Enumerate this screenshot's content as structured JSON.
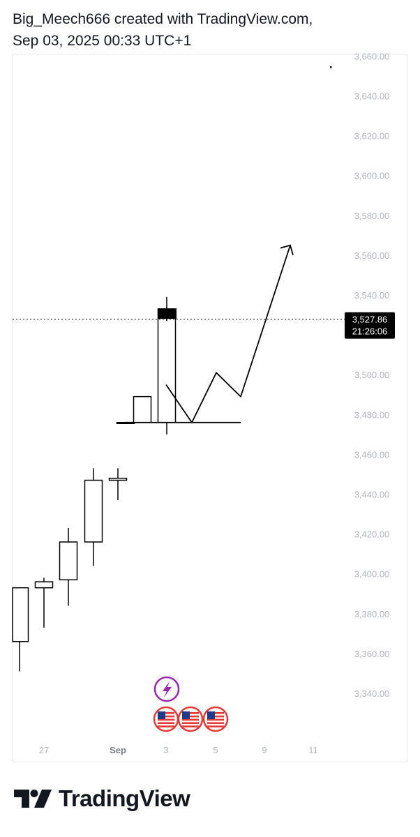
{
  "header": {
    "line1": "Big_Meech666 created with TradingView.com,",
    "line2": "Sep 03, 2025 00:33 UTC+1"
  },
  "brand": {
    "name": "TradingView"
  },
  "chart_data": {
    "type": "candlestick",
    "y_ticks": [
      "3,660.00",
      "3,640.00",
      "3,620.00",
      "3,600.00",
      "3,580.00",
      "3,560.00",
      "3,540.00",
      "3,500.00",
      "3,480.00",
      "3,460.00",
      "3,440.00",
      "3,420.00",
      "3,400.00",
      "3,380.00",
      "3,360.00",
      "3,340.00"
    ],
    "ylim": [
      3325,
      3662
    ],
    "x_ticks": [
      {
        "label": "27",
        "bold": false
      },
      {
        "label": "Sep",
        "bold": true
      },
      {
        "label": "3",
        "bold": false
      },
      {
        "label": "5",
        "bold": false
      },
      {
        "label": "9",
        "bold": false
      },
      {
        "label": "11",
        "bold": false
      }
    ],
    "candles": [
      {
        "open": 3393,
        "high": 3393,
        "low": 3351,
        "close": 3366,
        "partial": true
      },
      {
        "open": 3393,
        "high": 3398,
        "low": 3373,
        "close": 3396
      },
      {
        "open": 3397,
        "high": 3423,
        "low": 3384,
        "close": 3416
      },
      {
        "open": 3416,
        "high": 3453,
        "low": 3404,
        "close": 3447
      },
      {
        "open": 3448,
        "high": 3453,
        "low": 3437,
        "close": 3447
      },
      {
        "open": 3476,
        "high": 3476,
        "low": 3476,
        "close": 3476
      },
      {
        "open": 3476,
        "high": 3489,
        "low": 3476,
        "close": 3489
      },
      {
        "open": 3476,
        "high": 3539,
        "low": 3470,
        "close": 3533
      },
      {
        "open": 3532,
        "high": 3534,
        "low": 3527,
        "close": 3528
      }
    ],
    "last_price": {
      "value": "3,527.86",
      "countdown": "21:26:06",
      "price": 3527.86
    },
    "drawings": {
      "support_level": 3476,
      "projection_path": [
        3495,
        3476,
        3501,
        3489,
        3565
      ]
    },
    "events": {
      "lightning_icon": "lightning-icon",
      "flag_icons": [
        "us-flag-icon",
        "us-flag-icon",
        "us-flag-icon"
      ],
      "colors": {
        "event_purple": "#9c27b0",
        "flag_red": "#e53935",
        "flag_blue": "#1e3a8a"
      }
    },
    "colors": {
      "candle_stroke": "#000000",
      "candle_fill": "#ffffff",
      "last_candle_fill": "#000000",
      "axis_text": "#b2b5be"
    }
  }
}
